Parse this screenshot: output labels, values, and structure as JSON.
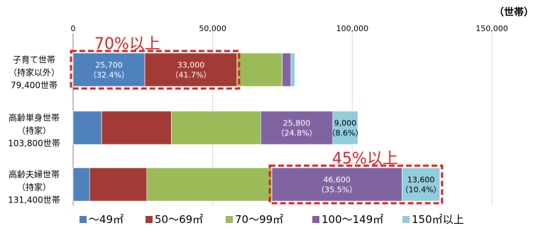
{
  "chart_data": {
    "type": "bar",
    "orientation": "horizontal",
    "stacked": true,
    "unit_label": "（世帯）",
    "xlim": [
      0,
      150000
    ],
    "x_ticks": [
      "0",
      "50,000",
      "100,000",
      "150,000"
    ],
    "grid": true,
    "legend_position": "bottom",
    "categories": [
      {
        "lines": [
          "子育て世帯",
          "（持家以外）",
          "79,400世帯"
        ],
        "total": 79400
      },
      {
        "lines": [
          "高齢単身世帯",
          "（持家）",
          "103,800世帯"
        ],
        "total": 103800
      },
      {
        "lines": [
          "高齢夫婦世帯",
          "（持家）",
          "131,400世帯"
        ],
        "total": 131400
      }
    ],
    "series": [
      {
        "name": "～49㎡",
        "color": "#4f81bd",
        "values": [
          25700,
          10200,
          5900
        ]
      },
      {
        "name": "50～69㎡",
        "color": "#a23b36",
        "values": [
          33000,
          25000,
          20500
        ]
      },
      {
        "name": "70～99㎡",
        "color": "#9bbb59",
        "values": [
          16200,
          32000,
          44800
        ]
      },
      {
        "name": "100～149㎡",
        "color": "#8064a2",
        "values": [
          3100,
          25800,
          46600
        ]
      },
      {
        "name": "150㎡以上",
        "color": "#92cddc",
        "values": [
          1400,
          9000,
          13600
        ]
      }
    ],
    "data_labels": [
      {
        "category": 0,
        "series": 0,
        "value": "25,700",
        "pct": "（32.4%）",
        "color": "light"
      },
      {
        "category": 0,
        "series": 1,
        "value": "33,000",
        "pct": "（41.7%）",
        "color": "light"
      },
      {
        "category": 1,
        "series": 3,
        "value": "25,800",
        "pct": "（24.8%）",
        "color": "light"
      },
      {
        "category": 1,
        "series": 4,
        "value": "9,000",
        "pct": "（8.6%）",
        "color": "dark"
      },
      {
        "category": 2,
        "series": 3,
        "value": "46,600",
        "pct": "（35.5%）",
        "color": "light"
      },
      {
        "category": 2,
        "series": 4,
        "value": "13,600",
        "pct": "（10.4%）",
        "color": "dark"
      }
    ],
    "annotations": [
      {
        "text": "70%以上",
        "category": 0,
        "from_series": 0,
        "to_series": 1
      },
      {
        "text": "45%以上",
        "category": 2,
        "from_series": 3,
        "to_series": 4
      }
    ]
  }
}
